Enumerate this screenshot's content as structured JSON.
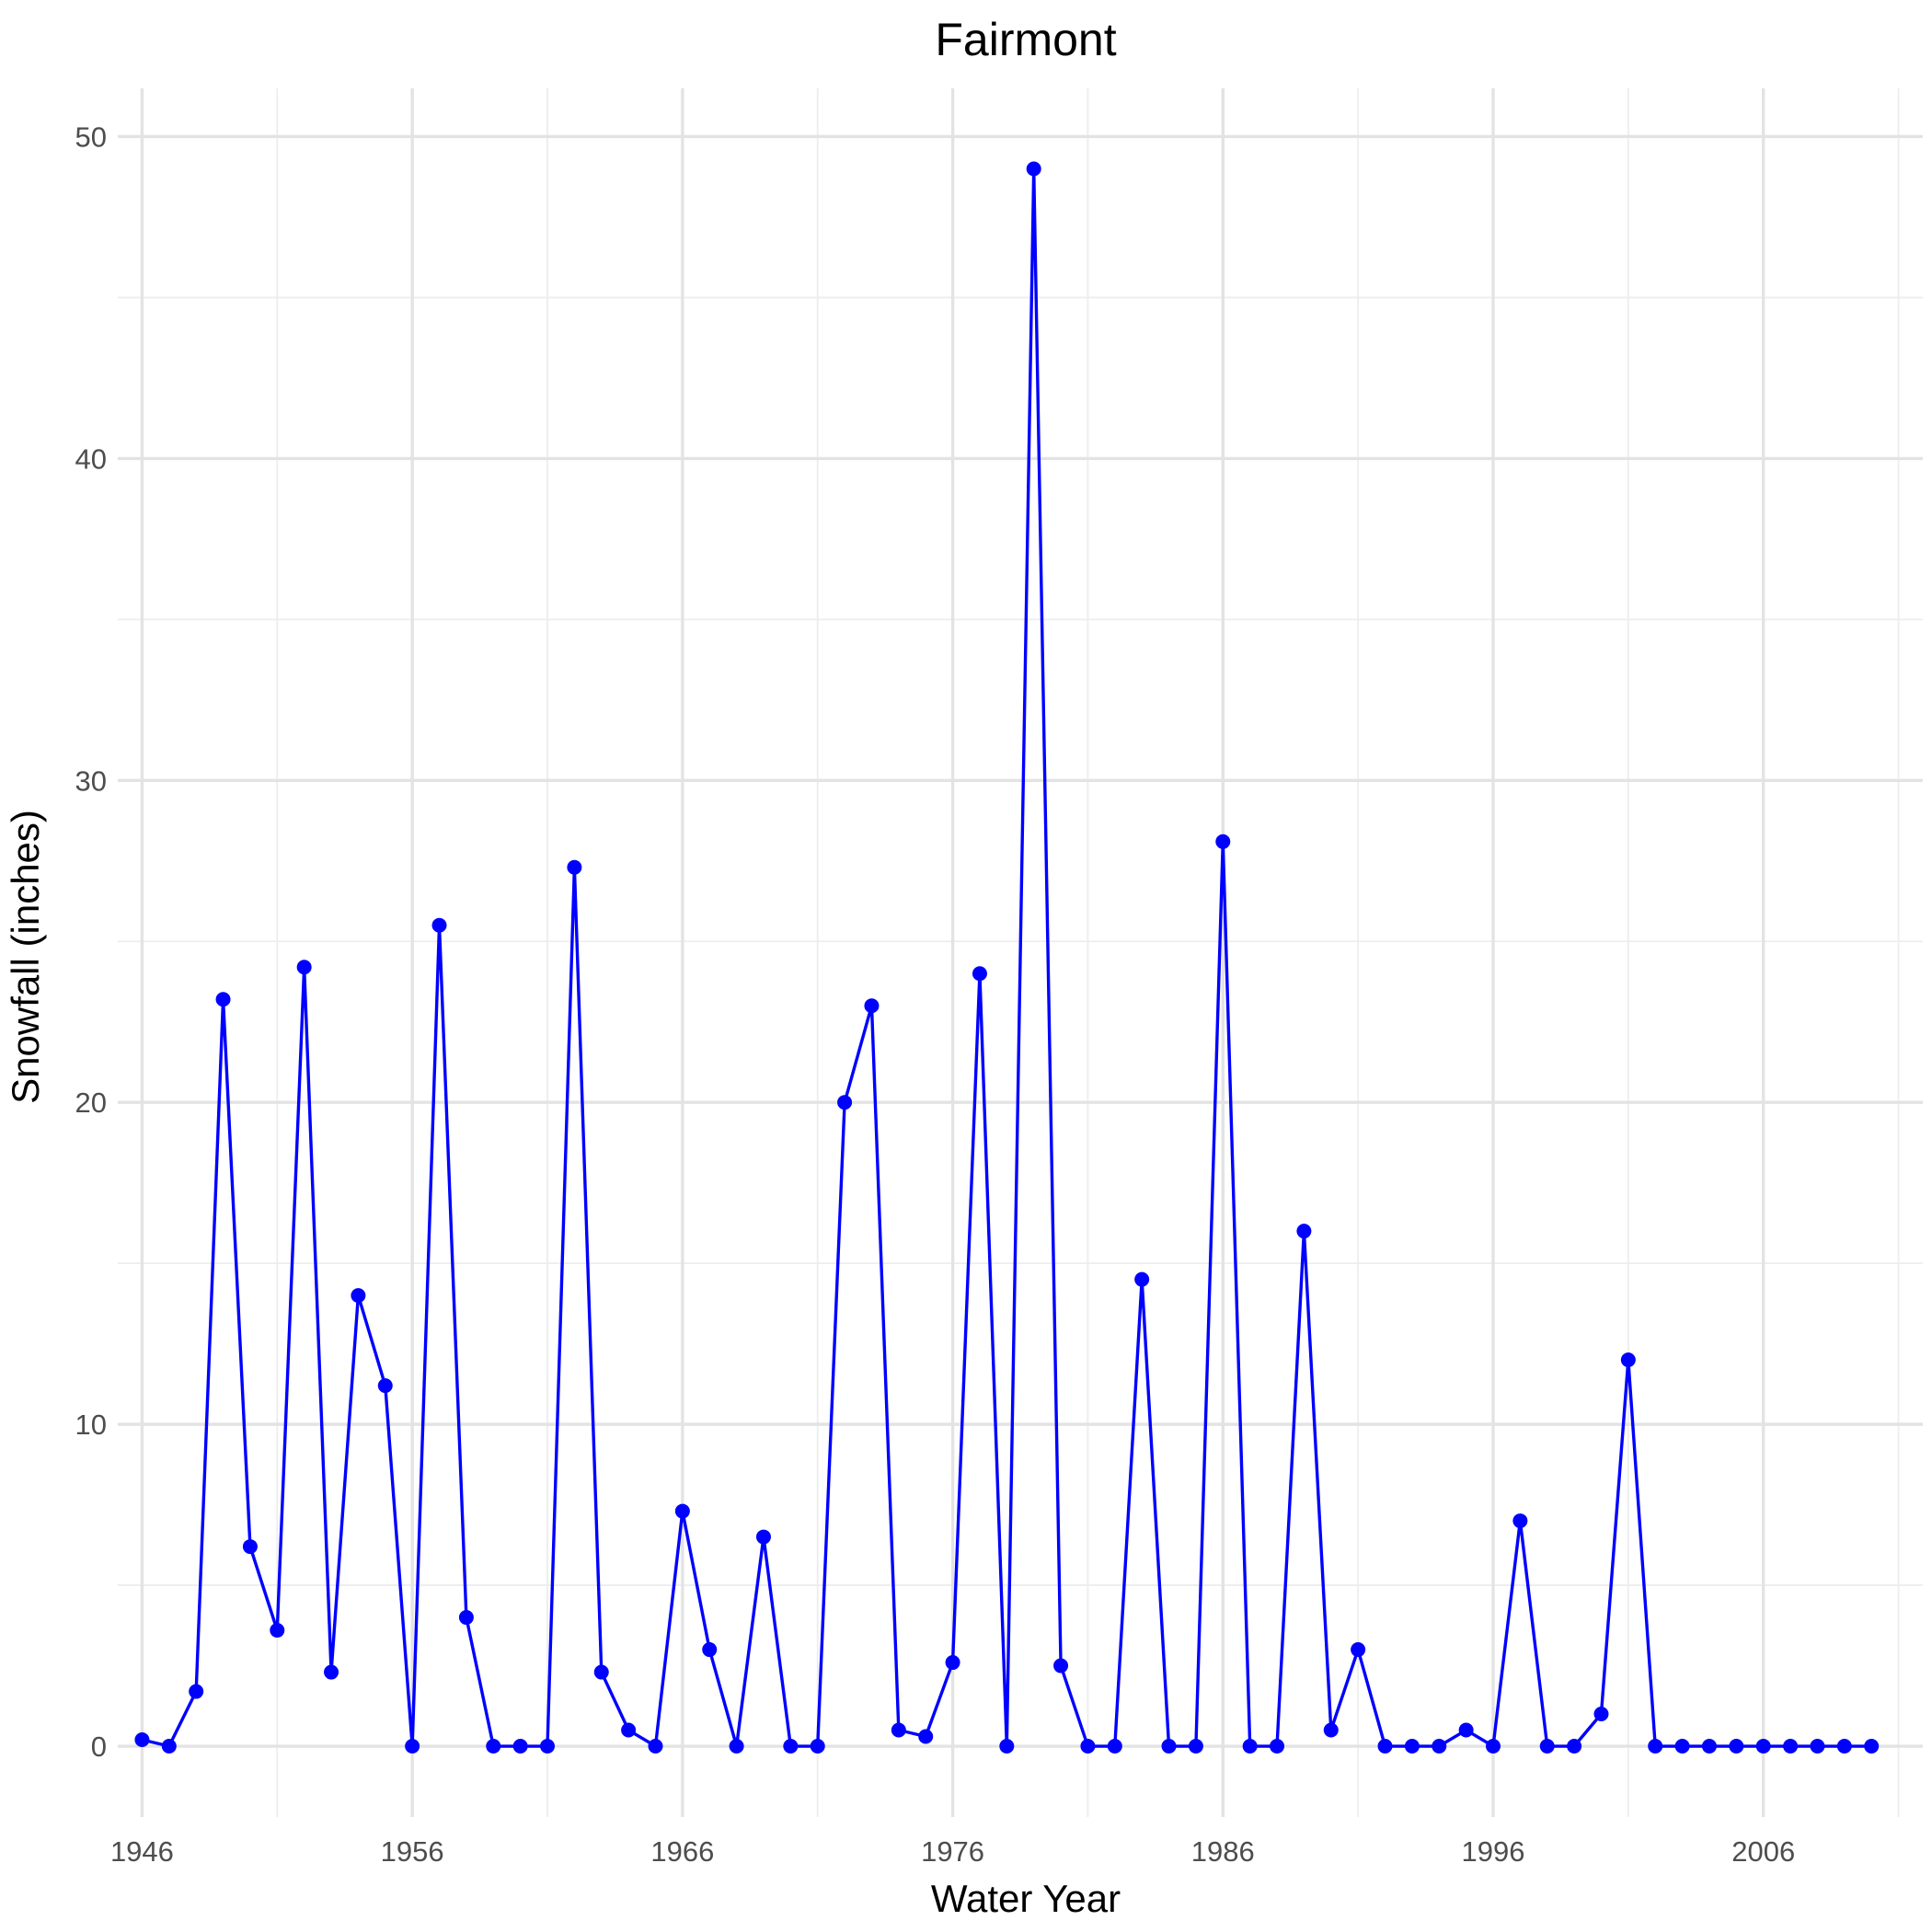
{
  "chart_data": {
    "type": "line",
    "title": "Fairmont",
    "xlabel": "Water Year",
    "ylabel": "Snowfall (inches)",
    "x_ticks": [
      1946,
      1956,
      1966,
      1976,
      1986,
      1996,
      2006
    ],
    "x_minor_ticks": [
      1951,
      1961,
      1971,
      1981,
      1991,
      2001,
      2011
    ],
    "y_ticks": [
      0,
      10,
      20,
      30,
      40,
      50
    ],
    "y_minor_ticks": [
      5,
      15,
      25,
      35,
      45
    ],
    "xlim": [
      1945.1,
      2011.9
    ],
    "ylim": [
      -2.2,
      51.5
    ],
    "grid": true,
    "line_color": "#0000ff",
    "point_color": "#0000ff",
    "series": [
      {
        "x": [
          1946,
          1947,
          1948,
          1949,
          1950,
          1951,
          1952,
          1953,
          1954,
          1955,
          1956,
          1957,
          1958,
          1959,
          1960,
          1961,
          1962,
          1963,
          1964,
          1965,
          1966,
          1967,
          1968,
          1969,
          1970,
          1971,
          1972,
          1973,
          1974,
          1975,
          1976,
          1977,
          1978,
          1979,
          1980,
          1981,
          1982,
          1983,
          1984,
          1985,
          1986,
          1987,
          1988,
          1989,
          1990,
          1991,
          1992,
          1993,
          1994,
          1995,
          1996,
          1997,
          1998,
          1999,
          2000,
          2001,
          2002,
          2003,
          2004,
          2005,
          2006,
          2007,
          2008,
          2009,
          2010
        ],
        "y": [
          0.2,
          0,
          1.7,
          23.2,
          6.2,
          3.6,
          24.2,
          2.3,
          14,
          11.2,
          0,
          25.5,
          4,
          0,
          0,
          0,
          27.3,
          2.3,
          0.5,
          0,
          7.3,
          3,
          0,
          6.5,
          0,
          0,
          20,
          23,
          0.5,
          0.3,
          2.6,
          24,
          0,
          49,
          2.5,
          0,
          0,
          14.5,
          0,
          0,
          28.1,
          0,
          0,
          16,
          0.5,
          3,
          0,
          0,
          0,
          0.5,
          0,
          7,
          0,
          0,
          1,
          12,
          0,
          0,
          0,
          0,
          0,
          0,
          0,
          0,
          0
        ]
      }
    ]
  }
}
